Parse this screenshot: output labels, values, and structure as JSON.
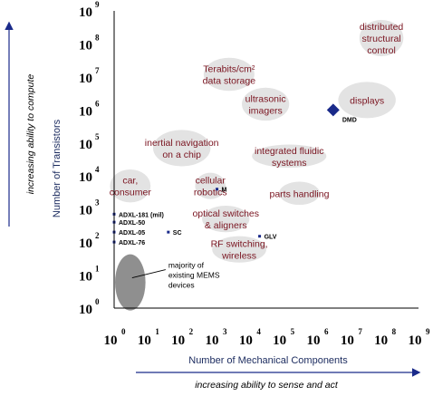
{
  "chart_data": {
    "type": "scatter",
    "x_scale": "log",
    "y_scale": "log",
    "xlim": [
      1,
      1000000000
    ],
    "ylim": [
      1,
      1000000000
    ],
    "xlabel": "Number of Mechanical Components",
    "ylabel": "Number of Transistors",
    "x_direction_label": "increasing ability to sense and act",
    "y_direction_label": "increasing ability to compute",
    "x_ticks": [
      {
        "base": "10",
        "exp": "0"
      },
      {
        "base": "10",
        "exp": "1"
      },
      {
        "base": "10",
        "exp": "2"
      },
      {
        "base": "10",
        "exp": "3"
      },
      {
        "base": "10",
        "exp": "4"
      },
      {
        "base": "10",
        "exp": "5"
      },
      {
        "base": "10",
        "exp": "6"
      },
      {
        "base": "10",
        "exp": "7"
      },
      {
        "base": "10",
        "exp": "8"
      },
      {
        "base": "10",
        "exp": "9"
      }
    ],
    "y_ticks": [
      {
        "base": "10",
        "exp": "0"
      },
      {
        "base": "10",
        "exp": "1"
      },
      {
        "base": "10",
        "exp": "2"
      },
      {
        "base": "10",
        "exp": "3"
      },
      {
        "base": "10",
        "exp": "4"
      },
      {
        "base": "10",
        "exp": "5"
      },
      {
        "base": "10",
        "exp": "6"
      },
      {
        "base": "10",
        "exp": "7"
      },
      {
        "base": "10",
        "exp": "8"
      },
      {
        "base": "10",
        "exp": "9"
      }
    ],
    "regions": [
      {
        "lines": [
          "distributed",
          "structural",
          "control"
        ],
        "x": 80000000,
        "y": 150000000,
        "rx": 0.65,
        "ry": 0.55
      },
      {
        "lines": [
          "Terabits/cm²",
          "data storage"
        ],
        "x": 2500,
        "y": 12000000,
        "rx": 0.75,
        "ry": 0.5
      },
      {
        "lines": [
          "displays"
        ],
        "x": 30000000,
        "y": 2000000,
        "rx": 0.85,
        "ry": 0.55
      },
      {
        "lines": [
          "ultrasonic",
          "imagers"
        ],
        "x": 30000,
        "y": 1500000,
        "rx": 0.7,
        "ry": 0.5
      },
      {
        "lines": [
          "inertial navigation",
          "on a chip"
        ],
        "x": 100,
        "y": 70000,
        "rx": 0.85,
        "ry": 0.55
      },
      {
        "lines": [
          "integrated fluidic",
          "systems"
        ],
        "x": 150000,
        "y": 40000,
        "rx": 1.1,
        "ry": 0.35
      },
      {
        "lines": [
          "car,",
          "consumer"
        ],
        "x": 3,
        "y": 5000,
        "rx": 0.6,
        "ry": 0.5
      },
      {
        "lines": [
          "cellular",
          "robotics"
        ],
        "x": 700,
        "y": 5000,
        "rx": 0.45,
        "ry": 0.4
      },
      {
        "lines": [
          "parts handling"
        ],
        "x": 300000,
        "y": 3000,
        "rx": 0.6,
        "ry": 0.35
      },
      {
        "lines": [
          "optical switches",
          "& aligners"
        ],
        "x": 2000,
        "y": 500,
        "rx": 0.7,
        "ry": 0.4
      },
      {
        "lines": [
          "RF switching,",
          "wireless"
        ],
        "x": 5000,
        "y": 60,
        "rx": 0.8,
        "ry": 0.4
      }
    ],
    "devices": [
      {
        "label": "DMD",
        "x": 3000000,
        "y": 1000000,
        "marker": "diamond"
      },
      {
        "label": "M",
        "x": 1100,
        "y": 4000,
        "marker": "small"
      },
      {
        "label": "GLV",
        "x": 20000,
        "y": 150,
        "marker": "small"
      },
      {
        "label": "SC",
        "x": 40,
        "y": 200,
        "marker": "small"
      },
      {
        "label": "ADXL-181 (mil)",
        "x": 1,
        "y": 700,
        "marker": "small"
      },
      {
        "label": "ADXL-50",
        "x": 1,
        "y": 400,
        "marker": "small"
      },
      {
        "label": "ADXL-05",
        "x": 1,
        "y": 200,
        "marker": "small"
      },
      {
        "label": "ADXL-76",
        "x": 1,
        "y": 100,
        "marker": "small"
      }
    ],
    "existing_region": {
      "x": 3,
      "y": 6,
      "rx": 0.45,
      "ry": 0.85
    },
    "annotation": {
      "lines": [
        "majority of",
        "existing MEMS",
        "devices"
      ],
      "x": 3,
      "y": 10
    }
  }
}
